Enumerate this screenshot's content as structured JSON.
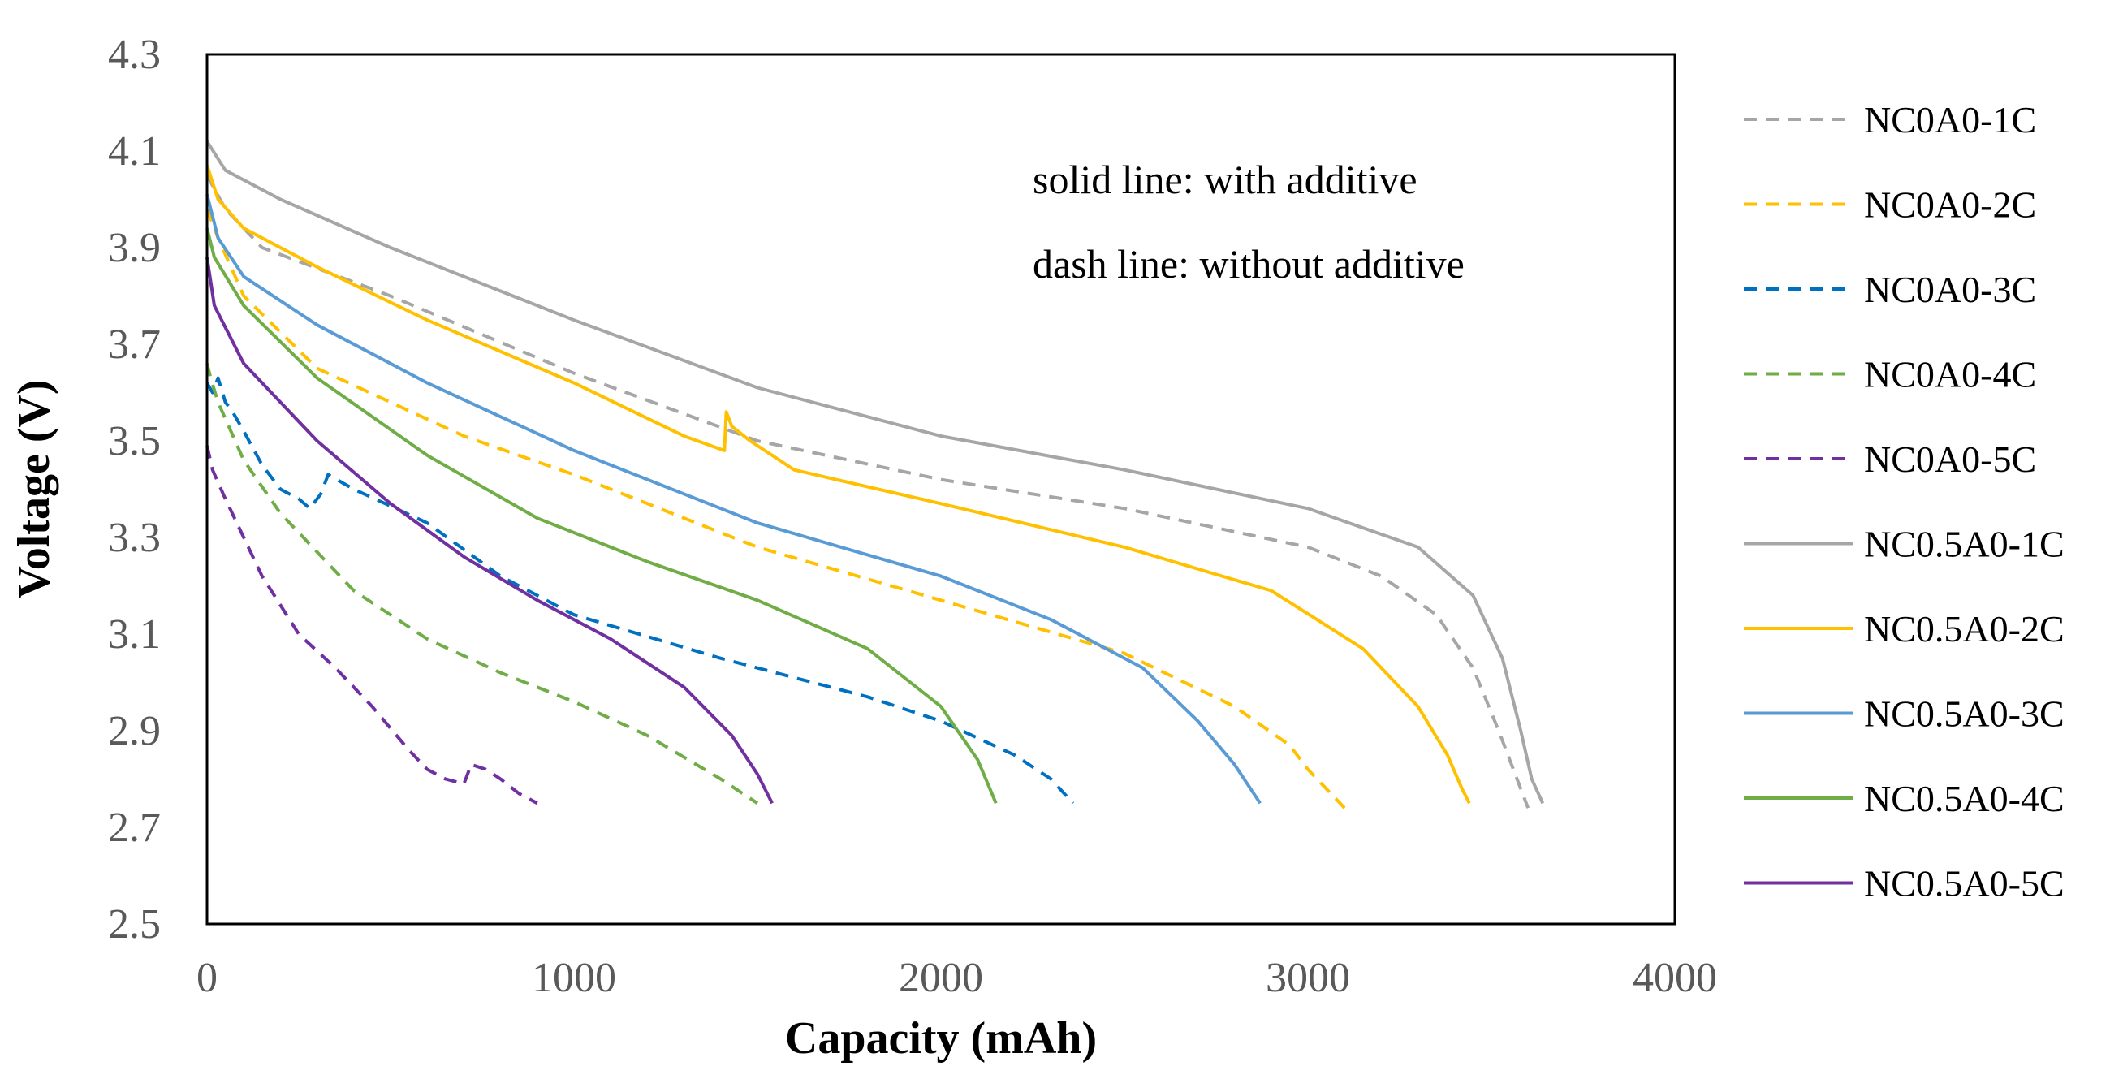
{
  "chart_data": {
    "type": "line",
    "title": "",
    "xlabel": "Capacity (mAh)",
    "ylabel": "Voltage (V)",
    "xlim": [
      0,
      4000
    ],
    "ylim": [
      2.5,
      4.3
    ],
    "xticks": [
      "0",
      "1000",
      "2000",
      "3000",
      "4000"
    ],
    "yticks": [
      "2.5",
      "2.7",
      "2.9",
      "3.1",
      "3.3",
      "3.5",
      "3.7",
      "3.9",
      "4.1",
      "4.3"
    ],
    "grid": false,
    "legend_position": "right",
    "annotations": [
      "solid line: with additive",
      "dash line: without additive"
    ],
    "series": [
      {
        "name": "NC0A0-1C",
        "color": "#a6a6a6",
        "dash": true,
        "x": [
          0,
          50,
          150,
          500,
          1000,
          1500,
          2000,
          2500,
          3000,
          3200,
          3350,
          3450,
          3520,
          3570,
          3600
        ],
        "y": [
          4.05,
          3.98,
          3.9,
          3.8,
          3.64,
          3.5,
          3.42,
          3.36,
          3.28,
          3.22,
          3.14,
          3.03,
          2.9,
          2.8,
          2.74
        ]
      },
      {
        "name": "NC0A0-2C",
        "color": "#ffc000",
        "dash": true,
        "x": [
          0,
          30,
          100,
          300,
          700,
          1000,
          1500,
          2000,
          2500,
          2800,
          2950,
          3000,
          3050,
          3100
        ],
        "y": [
          3.98,
          3.92,
          3.8,
          3.65,
          3.51,
          3.43,
          3.28,
          3.17,
          3.06,
          2.95,
          2.87,
          2.82,
          2.78,
          2.74
        ]
      },
      {
        "name": "NC0A0-3C",
        "color": "#0070c0",
        "dash": true,
        "x": [
          0,
          15,
          30,
          50,
          70,
          100,
          150,
          200,
          250,
          280,
          310,
          330,
          400,
          600,
          800,
          1000,
          1400,
          1800,
          2000,
          2200,
          2300,
          2360
        ],
        "y": [
          3.62,
          3.6,
          3.63,
          3.58,
          3.56,
          3.52,
          3.45,
          3.4,
          3.38,
          3.36,
          3.39,
          3.43,
          3.4,
          3.33,
          3.22,
          3.14,
          3.05,
          2.97,
          2.92,
          2.85,
          2.8,
          2.75
        ]
      },
      {
        "name": "NC0A0-4C",
        "color": "#70ad47",
        "dash": true,
        "x": [
          0,
          10,
          30,
          100,
          200,
          400,
          600,
          800,
          1000,
          1200,
          1400,
          1500
        ],
        "y": [
          3.66,
          3.63,
          3.58,
          3.46,
          3.35,
          3.19,
          3.09,
          3.02,
          2.96,
          2.89,
          2.8,
          2.75
        ]
      },
      {
        "name": "NC0A0-5C",
        "color": "#7030a0",
        "dash": true,
        "x": [
          0,
          15,
          50,
          150,
          250,
          350,
          450,
          550,
          600,
          650,
          700,
          720,
          760,
          800,
          850,
          900
        ],
        "y": [
          3.49,
          3.44,
          3.38,
          3.22,
          3.1,
          3.03,
          2.95,
          2.86,
          2.82,
          2.8,
          2.79,
          2.83,
          2.82,
          2.8,
          2.77,
          2.75
        ]
      },
      {
        "name": "NC0.5A0-1C",
        "color": "#a6a6a6",
        "dash": false,
        "x": [
          0,
          50,
          200,
          500,
          1000,
          1500,
          2000,
          2500,
          3000,
          3300,
          3450,
          3530,
          3580,
          3610,
          3640
        ],
        "y": [
          4.12,
          4.06,
          4.0,
          3.9,
          3.75,
          3.61,
          3.51,
          3.44,
          3.36,
          3.28,
          3.18,
          3.05,
          2.9,
          2.8,
          2.75
        ]
      },
      {
        "name": "NC0.5A0-2C",
        "color": "#ffc000",
        "dash": false,
        "x": [
          0,
          30,
          100,
          300,
          600,
          1000,
          1300,
          1410,
          1415,
          1430,
          1480,
          1600,
          2000,
          2500,
          2900,
          3150,
          3300,
          3380,
          3420,
          3440
        ],
        "y": [
          4.07,
          4.0,
          3.94,
          3.86,
          3.75,
          3.62,
          3.51,
          3.48,
          3.56,
          3.53,
          3.5,
          3.44,
          3.37,
          3.28,
          3.19,
          3.07,
          2.95,
          2.85,
          2.78,
          2.75
        ]
      },
      {
        "name": "NC0.5A0-3C",
        "color": "#5b9bd5",
        "dash": false,
        "x": [
          0,
          30,
          100,
          300,
          600,
          1000,
          1500,
          2000,
          2300,
          2550,
          2700,
          2800,
          2870
        ],
        "y": [
          4.01,
          3.92,
          3.84,
          3.74,
          3.62,
          3.48,
          3.33,
          3.22,
          3.13,
          3.03,
          2.92,
          2.83,
          2.75
        ]
      },
      {
        "name": "NC0.5A0-4C",
        "color": "#70ad47",
        "dash": false,
        "x": [
          0,
          20,
          100,
          300,
          600,
          900,
          1200,
          1500,
          1800,
          2000,
          2100,
          2150
        ],
        "y": [
          3.94,
          3.88,
          3.78,
          3.63,
          3.47,
          3.34,
          3.25,
          3.17,
          3.07,
          2.95,
          2.84,
          2.75
        ]
      },
      {
        "name": "NC0.5A0-5C",
        "color": "#7030a0",
        "dash": false,
        "x": [
          0,
          20,
          100,
          300,
          500,
          700,
          900,
          1100,
          1300,
          1430,
          1500,
          1540
        ],
        "y": [
          3.88,
          3.78,
          3.66,
          3.5,
          3.37,
          3.26,
          3.17,
          3.09,
          2.99,
          2.89,
          2.81,
          2.75
        ]
      }
    ]
  }
}
